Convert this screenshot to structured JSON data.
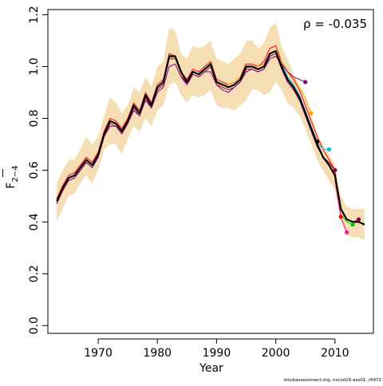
{
  "chart_data": {
    "type": "line",
    "xlabel": "Year",
    "ylabel_main": "F",
    "ylabel_sub": "2−4",
    "annotation": "ρ = -0.035",
    "footer": "stockassessment.org, nscod16-ass01, r6972",
    "xlim": [
      1961.5,
      2016.5
    ],
    "ylim": [
      -0.03,
      1.22
    ],
    "x_ticks": [
      1970,
      1980,
      1990,
      2000,
      2010
    ],
    "y_ticks": [
      0.0,
      0.2,
      0.4,
      0.6,
      0.8,
      1.0,
      1.2
    ],
    "y_tick_labels": [
      "0.0",
      "0.2",
      "0.4",
      "0.6",
      "0.8",
      "1.0",
      "1.2"
    ],
    "band_color": "#f5deb3",
    "band": {
      "x": [
        1963,
        1964,
        1965,
        1966,
        1967,
        1968,
        1969,
        1970,
        1971,
        1972,
        1973,
        1974,
        1975,
        1976,
        1977,
        1978,
        1979,
        1980,
        1981,
        1982,
        1983,
        1984,
        1985,
        1986,
        1987,
        1988,
        1989,
        1990,
        1991,
        1992,
        1993,
        1994,
        1995,
        1996,
        1997,
        1998,
        1999,
        2000,
        2001,
        2002,
        2003,
        2004,
        2005,
        2006,
        2007,
        2008,
        2009,
        2010,
        2011,
        2012,
        2013,
        2014,
        2015
      ],
      "lower": [
        0.4,
        0.45,
        0.5,
        0.51,
        0.55,
        0.58,
        0.55,
        0.6,
        0.68,
        0.7,
        0.7,
        0.66,
        0.72,
        0.77,
        0.75,
        0.8,
        0.77,
        0.83,
        0.85,
        0.93,
        0.94,
        0.89,
        0.86,
        0.89,
        0.88,
        0.89,
        0.91,
        0.85,
        0.84,
        0.84,
        0.83,
        0.85,
        0.87,
        0.91,
        0.91,
        0.89,
        0.9,
        0.94,
        0.91,
        0.86,
        0.84,
        0.81,
        0.76,
        0.7,
        0.64,
        0.6,
        0.56,
        0.52,
        0.4,
        0.35,
        0.34,
        0.34,
        0.33
      ],
      "upper": [
        0.55,
        0.6,
        0.64,
        0.64,
        0.68,
        0.73,
        0.7,
        0.73,
        0.81,
        0.88,
        0.86,
        0.82,
        0.85,
        0.92,
        0.9,
        0.96,
        0.92,
        1.0,
        1.02,
        1.15,
        1.14,
        1.05,
        1.03,
        1.08,
        1.07,
        1.08,
        1.1,
        1.03,
        1.02,
        1.01,
        1.03,
        1.05,
        1.1,
        1.1,
        1.07,
        1.09,
        1.15,
        1.17,
        1.08,
        1.03,
        0.97,
        0.92,
        0.88,
        0.82,
        0.74,
        0.7,
        0.66,
        0.62,
        0.5,
        0.46,
        0.45,
        0.45,
        0.45
      ]
    },
    "series": [
      {
        "color": "#000000",
        "width": 2.2,
        "x": [
          1963,
          1964,
          1965,
          1966,
          1967,
          1968,
          1969,
          1970,
          1971,
          1972,
          1973,
          1974,
          1975,
          1976,
          1977,
          1978,
          1979,
          1980,
          1981,
          1982,
          1983,
          1984,
          1985,
          1986,
          1987,
          1988,
          1989,
          1990,
          1991,
          1992,
          1993,
          1994,
          1995,
          1996,
          1997,
          1998,
          1999,
          2000,
          2001,
          2002,
          2003,
          2004,
          2005,
          2006,
          2007,
          2008,
          2009,
          2010,
          2011,
          2012,
          2013,
          2014,
          2015
        ],
        "y": [
          0.48,
          0.53,
          0.57,
          0.58,
          0.61,
          0.64,
          0.62,
          0.66,
          0.74,
          0.79,
          0.78,
          0.75,
          0.79,
          0.85,
          0.82,
          0.89,
          0.85,
          0.92,
          0.94,
          1.04,
          1.04,
          0.98,
          0.94,
          0.98,
          0.97,
          0.99,
          1.01,
          0.94,
          0.93,
          0.92,
          0.93,
          0.95,
          1.0,
          1.0,
          0.99,
          1.0,
          1.05,
          1.06,
          1.0,
          0.95,
          0.92,
          0.88,
          0.82,
          0.76,
          0.7,
          0.65,
          0.62,
          0.58,
          0.45,
          0.41,
          0.4,
          0.4,
          0.39
        ]
      },
      {
        "color": "#ff0000",
        "width": 1,
        "x": [
          1963,
          1964,
          1965,
          1966,
          1967,
          1968,
          1969,
          1970,
          1971,
          1972,
          1973,
          1974,
          1975,
          1976,
          1977,
          1978,
          1979,
          1980,
          1981,
          1982,
          1983,
          1984,
          1985,
          1986,
          1987,
          1988,
          1989,
          1990,
          1991,
          1992,
          1993,
          1994,
          1995,
          1996,
          1997,
          1998,
          1999,
          2000,
          2001,
          2002,
          2003,
          2004,
          2005,
          2006,
          2007,
          2008,
          2009,
          2010,
          2011
        ],
        "y": [
          0.49,
          0.54,
          0.58,
          0.59,
          0.62,
          0.65,
          0.63,
          0.67,
          0.75,
          0.8,
          0.79,
          0.76,
          0.8,
          0.86,
          0.83,
          0.9,
          0.86,
          0.93,
          0.95,
          1.05,
          1.04,
          0.98,
          0.95,
          0.99,
          0.98,
          1.0,
          1.02,
          0.95,
          0.94,
          0.93,
          0.94,
          0.96,
          1.01,
          1.01,
          1.0,
          1.02,
          1.07,
          1.08,
          1.02,
          0.98,
          0.95,
          0.91,
          0.85,
          0.79,
          0.73,
          0.68,
          0.64,
          0.6,
          0.42
        ],
        "end": {
          "x": 2011,
          "y": 0.42
        }
      },
      {
        "color": "#8b0045",
        "width": 1,
        "x": [
          1963,
          1964,
          1965,
          1966,
          1967,
          1968,
          1969,
          1970,
          1971,
          1972,
          1973,
          1974,
          1975,
          1976,
          1977,
          1978,
          1979,
          1980,
          1981,
          1982,
          1983,
          1984,
          1985,
          1986,
          1987,
          1988,
          1989,
          1990,
          1991,
          1992,
          1993,
          1994,
          1995,
          1996,
          1997,
          1998,
          1999,
          2000,
          2001,
          2002,
          2003,
          2004,
          2005,
          2006,
          2007,
          2008,
          2009,
          2010
        ],
        "y": [
          0.47,
          0.52,
          0.56,
          0.57,
          0.6,
          0.63,
          0.61,
          0.65,
          0.73,
          0.78,
          0.77,
          0.74,
          0.78,
          0.84,
          0.81,
          0.88,
          0.84,
          0.91,
          0.93,
          1.03,
          1.03,
          0.97,
          0.93,
          0.97,
          0.96,
          0.98,
          1.0,
          0.93,
          0.92,
          0.91,
          0.92,
          0.94,
          0.99,
          0.99,
          0.98,
          0.99,
          1.04,
          1.05,
          0.99,
          0.94,
          0.91,
          0.87,
          0.81,
          0.75,
          0.69,
          0.65,
          0.63,
          0.6
        ],
        "end": {
          "x": 2010,
          "y": 0.6
        }
      },
      {
        "color": "#00bfff",
        "width": 1,
        "x": [
          1963,
          1964,
          1965,
          1966,
          1967,
          1968,
          1969,
          1970,
          1971,
          1972,
          1973,
          1974,
          1975,
          1976,
          1977,
          1978,
          1979,
          1980,
          1981,
          1982,
          1983,
          1984,
          1985,
          1986,
          1987,
          1988,
          1989,
          1990,
          1991,
          1992,
          1993,
          1994,
          1995,
          1996,
          1997,
          1998,
          1999,
          2000,
          2001,
          2002,
          2003,
          2004,
          2005,
          2006,
          2007,
          2008,
          2009
        ],
        "y": [
          0.48,
          0.53,
          0.57,
          0.58,
          0.61,
          0.64,
          0.62,
          0.66,
          0.74,
          0.79,
          0.78,
          0.75,
          0.79,
          0.85,
          0.82,
          0.89,
          0.85,
          0.92,
          0.94,
          1.04,
          1.03,
          0.97,
          0.94,
          0.98,
          0.97,
          0.99,
          1.01,
          0.94,
          0.93,
          0.92,
          0.93,
          0.95,
          1.0,
          1.0,
          0.99,
          1.0,
          1.05,
          1.06,
          1.01,
          0.96,
          0.93,
          0.89,
          0.83,
          0.77,
          0.71,
          0.68,
          0.68
        ],
        "end": {
          "x": 2009,
          "y": 0.68
        }
      },
      {
        "color": "#000000",
        "width": 1,
        "x": [
          1963,
          1964,
          1965,
          1966,
          1967,
          1968,
          1969,
          1970,
          1971,
          1972,
          1973,
          1974,
          1975,
          1976,
          1977,
          1978,
          1979,
          1980,
          1981,
          1982,
          1983,
          1984,
          1985,
          1986,
          1987,
          1988,
          1989,
          1990,
          1991,
          1992,
          1993,
          1994,
          1995,
          1996,
          1997,
          1998,
          1999,
          2000,
          2001,
          2002,
          2003,
          2004,
          2005,
          2006,
          2007
        ],
        "y": [
          0.48,
          0.53,
          0.57,
          0.58,
          0.61,
          0.64,
          0.62,
          0.66,
          0.74,
          0.79,
          0.78,
          0.75,
          0.79,
          0.85,
          0.82,
          0.89,
          0.85,
          0.92,
          0.94,
          1.04,
          1.04,
          0.98,
          0.94,
          0.98,
          0.97,
          0.99,
          1.01,
          0.94,
          0.93,
          0.92,
          0.93,
          0.95,
          1.0,
          1.0,
          0.99,
          1.0,
          1.05,
          1.06,
          1.0,
          0.95,
          0.92,
          0.88,
          0.82,
          0.76,
          0.71
        ],
        "end": {
          "x": 2007,
          "y": 0.71
        }
      },
      {
        "color": "#ffa500",
        "width": 1,
        "x": [
          1963,
          1964,
          1965,
          1966,
          1967,
          1968,
          1969,
          1970,
          1971,
          1972,
          1973,
          1974,
          1975,
          1976,
          1977,
          1978,
          1979,
          1980,
          1981,
          1982,
          1983,
          1984,
          1985,
          1986,
          1987,
          1988,
          1989,
          1990,
          1991,
          1992,
          1993,
          1994,
          1995,
          1996,
          1997,
          1998,
          1999,
          2000,
          2001,
          2002,
          2003,
          2004,
          2005,
          2006
        ],
        "y": [
          0.48,
          0.53,
          0.57,
          0.58,
          0.61,
          0.64,
          0.62,
          0.66,
          0.74,
          0.79,
          0.78,
          0.75,
          0.79,
          0.85,
          0.82,
          0.89,
          0.85,
          0.92,
          0.94,
          1.04,
          1.03,
          0.97,
          0.94,
          0.98,
          0.97,
          0.99,
          1.01,
          0.94,
          0.93,
          0.93,
          0.94,
          0.96,
          1.0,
          1.0,
          1.0,
          1.01,
          1.05,
          1.06,
          1.02,
          0.98,
          0.96,
          0.92,
          0.88,
          0.82
        ],
        "end": {
          "x": 2006,
          "y": 0.82
        }
      },
      {
        "color": "#800080",
        "width": 1,
        "x": [
          1963,
          1964,
          1965,
          1966,
          1967,
          1968,
          1969,
          1970,
          1971,
          1972,
          1973,
          1974,
          1975,
          1976,
          1977,
          1978,
          1979,
          1980,
          1981,
          1982,
          1983,
          1984,
          1985,
          1986,
          1987,
          1988,
          1989,
          1990,
          1991,
          1992,
          1993,
          1994,
          1995,
          1996,
          1997,
          1998,
          1999,
          2000,
          2001,
          2002,
          2003,
          2004,
          2005
        ],
        "y": [
          0.48,
          0.53,
          0.56,
          0.57,
          0.6,
          0.63,
          0.61,
          0.65,
          0.73,
          0.77,
          0.77,
          0.74,
          0.78,
          0.83,
          0.81,
          0.87,
          0.84,
          0.9,
          0.92,
          1.0,
          1.01,
          0.96,
          0.93,
          0.97,
          0.96,
          0.98,
          0.98,
          0.93,
          0.91,
          0.9,
          0.92,
          0.94,
          0.98,
          0.99,
          0.98,
          0.99,
          1.03,
          1.04,
          1.01,
          0.98,
          0.96,
          0.95,
          0.94
        ],
        "end": {
          "x": 2005,
          "y": 0.94
        }
      },
      {
        "color": "#8b0045",
        "width": 1,
        "x": [
          2010,
          2011,
          2012,
          2013,
          2014
        ],
        "y": [
          0.58,
          0.45,
          0.41,
          0.4,
          0.41
        ],
        "end": {
          "x": 2014,
          "y": 0.41
        }
      },
      {
        "color": "#00cc00",
        "width": 1,
        "x": [
          2011,
          2012,
          2013
        ],
        "y": [
          0.43,
          0.4,
          0.39
        ],
        "end": {
          "x": 2013,
          "y": 0.39
        }
      },
      {
        "color": "#ff1493",
        "width": 1,
        "x": [
          2010,
          2011,
          2012
        ],
        "y": [
          0.56,
          0.42,
          0.36
        ],
        "end": {
          "x": 2012,
          "y": 0.36
        }
      }
    ]
  }
}
